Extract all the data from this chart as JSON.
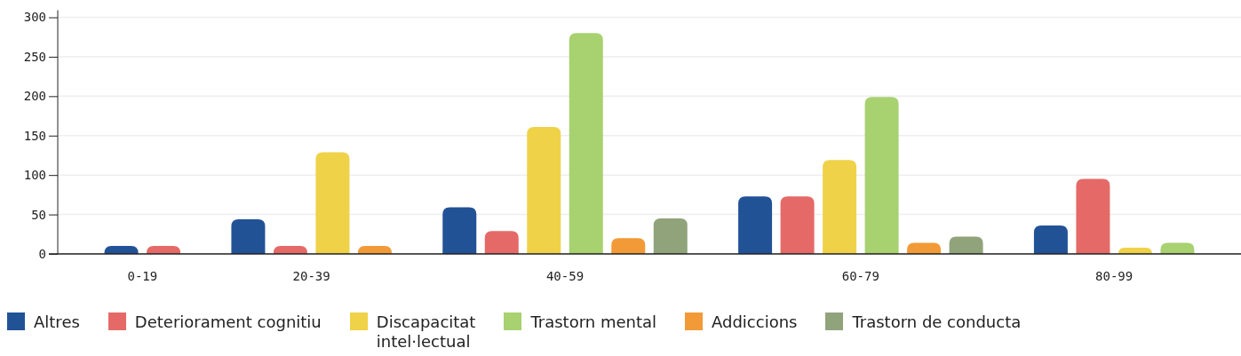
{
  "chart_data": {
    "type": "bar",
    "categories": [
      "0-19",
      "20-39",
      "40-59",
      "60-79",
      "80-99"
    ],
    "series": [
      {
        "name": "Altres",
        "color": "#225296",
        "values": [
          10,
          44,
          59,
          73,
          36
        ]
      },
      {
        "name": "Deteriorament cognitiu",
        "color": "#e56a67",
        "values": [
          10,
          10,
          29,
          73,
          95
        ]
      },
      {
        "name": "Discapacitat intel·lectual",
        "color": "#efd248",
        "values": [
          null,
          129,
          161,
          119,
          8
        ]
      },
      {
        "name": "Trastorn mental",
        "color": "#a8d170",
        "values": [
          null,
          null,
          280,
          199,
          14
        ]
      },
      {
        "name": "Addiccions",
        "color": "#f29a37",
        "values": [
          null,
          10,
          20,
          14,
          null
        ]
      },
      {
        "name": "Trastorn de conducta",
        "color": "#91a37b",
        "values": [
          null,
          null,
          45,
          22,
          null
        ]
      }
    ],
    "ylim": [
      0,
      300
    ],
    "yticks": [
      0,
      50,
      100,
      150,
      200,
      250,
      300
    ],
    "grid": "y",
    "legend": "bottom"
  }
}
